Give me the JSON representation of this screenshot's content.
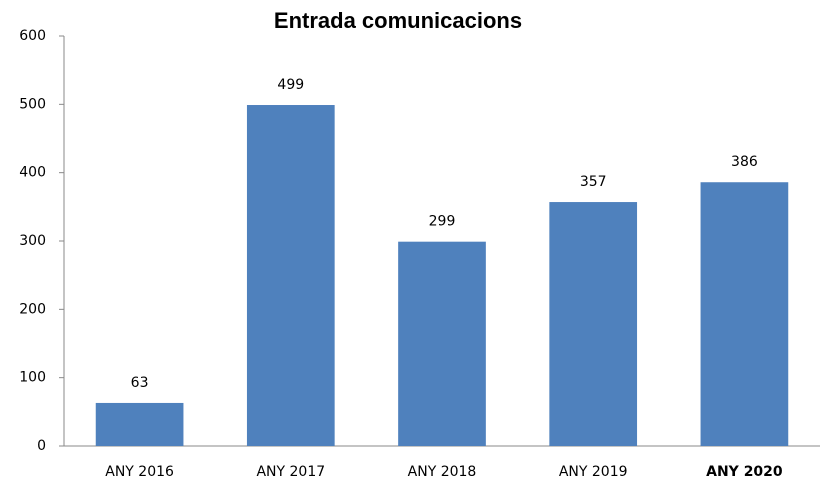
{
  "chart_data": {
    "type": "bar",
    "title": "Entrada comunicacions",
    "categories": [
      "ANY 2016",
      "ANY 2017",
      "ANY 2018",
      "ANY 2019",
      "ANY 2020"
    ],
    "values": [
      63,
      499,
      299,
      357,
      386
    ],
    "color": "#4f81bd",
    "ylim": [
      0,
      600
    ],
    "yticks": [
      0,
      100,
      200,
      300,
      400,
      500,
      600
    ],
    "grid": false
  }
}
